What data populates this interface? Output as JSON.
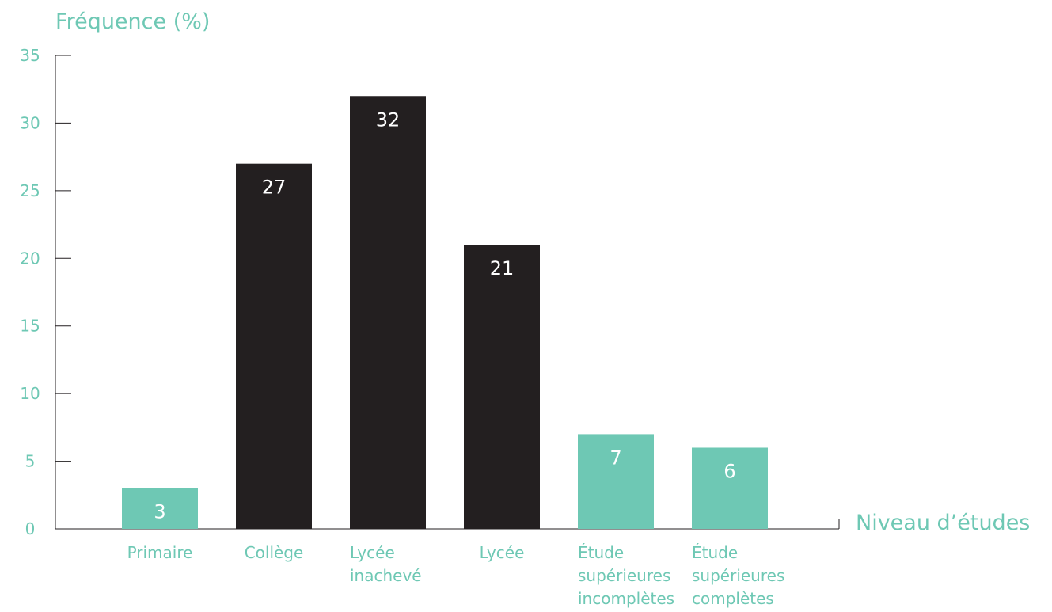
{
  "chart_data": {
    "type": "bar",
    "ylabel": "Fréquence (%)",
    "xlabel": "Niveau d’études",
    "ylim": [
      0,
      35
    ],
    "yticks": [
      0,
      5,
      10,
      15,
      20,
      25,
      30,
      35
    ],
    "categories": [
      "Primaire",
      "Collège",
      "Lycée inachevé",
      "Lycée",
      "Étude supérieures incomplètes",
      "Étude supérieures complètes"
    ],
    "category_lines": [
      [
        "Primaire"
      ],
      [
        "Collège"
      ],
      [
        "Lycée",
        "inachevé"
      ],
      [
        "Lycée"
      ],
      [
        "Étude",
        "supérieures",
        "incomplètes"
      ],
      [
        "Étude",
        "supérieures",
        "complètes"
      ]
    ],
    "values": [
      3,
      27,
      32,
      21,
      7,
      6
    ],
    "bar_colors": [
      "#6ec8b4",
      "#231f20",
      "#231f20",
      "#231f20",
      "#6ec8b4",
      "#6ec8b4"
    ],
    "colors": {
      "accent": "#6ec8b4",
      "dark": "#231f20",
      "axis": "#231f20",
      "label_on_bar": "#ffffff"
    },
    "grid": false,
    "legend": "none"
  }
}
